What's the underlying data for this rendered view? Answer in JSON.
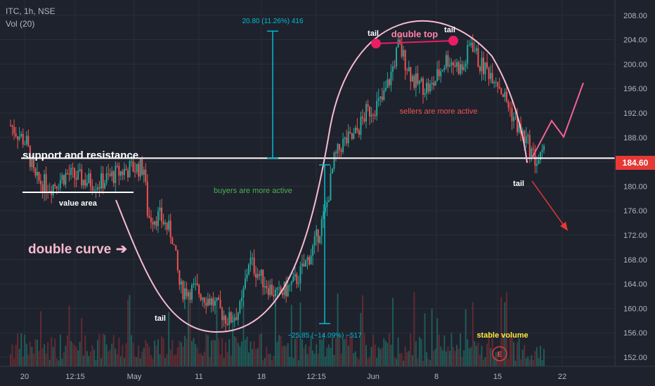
{
  "header": {
    "symbol_line": "ITC, 1h, NSE",
    "volume_line": "Vol (20)"
  },
  "colors": {
    "background": "#1e222d",
    "grid": "#2a2e39",
    "up_candle": "#26a69a",
    "down_candle": "#ef5350",
    "volume_up": "#1f6f66",
    "volume_down": "#7a2e33",
    "curve": "#f8bbd0",
    "pink_marker": "#e91e63",
    "measure_cyan": "#00bcd4",
    "sellers_text": "#ef5350",
    "buyers_text": "#4caf50",
    "stable_text": "#ffeb3b",
    "price_badge": "#e53935",
    "white": "#ffffff"
  },
  "chart_data": {
    "type": "candlestick",
    "title": "ITC, 1h, NSE",
    "ylim": [
      150.5,
      210.5
    ],
    "y_ticks": [
      152,
      156,
      160,
      164,
      168,
      172,
      176,
      180,
      184,
      188,
      192,
      196,
      200,
      204,
      208
    ],
    "y_tick_labels": [
      "152.00",
      "156.00",
      "160.00",
      "164.00",
      "168.00",
      "172.00",
      "176.00",
      "180.00",
      "184.00",
      "188.00",
      "192.00",
      "196.00",
      "200.00",
      "204.00",
      "208.00"
    ],
    "x_ticks": [
      "20",
      "12:15",
      "May",
      "11",
      "18",
      "12:15",
      "Jun",
      "8",
      "15",
      "22"
    ],
    "last_price": "184.60",
    "price_path": [
      {
        "d": 0,
        "p": 190
      },
      {
        "d": 2,
        "p": 187
      },
      {
        "d": 3,
        "p": 181
      },
      {
        "d": 5,
        "p": 180
      },
      {
        "d": 7,
        "p": 182
      },
      {
        "d": 9,
        "p": 181
      },
      {
        "d": 11,
        "p": 180.5
      },
      {
        "d": 13,
        "p": 182
      },
      {
        "d": 15,
        "p": 183
      },
      {
        "d": 16.5,
        "p": 183
      },
      {
        "d": 17,
        "p": 175
      },
      {
        "d": 18.5,
        "p": 175
      },
      {
        "d": 20,
        "p": 172
      },
      {
        "d": 21,
        "p": 163
      },
      {
        "d": 23,
        "p": 163
      },
      {
        "d": 25,
        "p": 161
      },
      {
        "d": 27,
        "p": 158
      },
      {
        "d": 28.5,
        "p": 160
      },
      {
        "d": 29.5,
        "p": 168
      },
      {
        "d": 31,
        "p": 165
      },
      {
        "d": 33,
        "p": 162
      },
      {
        "d": 35,
        "p": 164
      },
      {
        "d": 36,
        "p": 166
      },
      {
        "d": 37.5,
        "p": 170
      },
      {
        "d": 39,
        "p": 176
      },
      {
        "d": 40,
        "p": 184
      },
      {
        "d": 41,
        "p": 187
      },
      {
        "d": 42.5,
        "p": 188
      },
      {
        "d": 44,
        "p": 192
      },
      {
        "d": 46,
        "p": 194
      },
      {
        "d": 47,
        "p": 198
      },
      {
        "d": 48,
        "p": 203
      },
      {
        "d": 50,
        "p": 197
      },
      {
        "d": 52,
        "p": 196
      },
      {
        "d": 54,
        "p": 201
      },
      {
        "d": 56,
        "p": 199
      },
      {
        "d": 57,
        "p": 204
      },
      {
        "d": 58,
        "p": 200
      },
      {
        "d": 60,
        "p": 198
      },
      {
        "d": 62,
        "p": 192
      },
      {
        "d": 63,
        "p": 189
      },
      {
        "d": 64,
        "p": 187
      },
      {
        "d": 65,
        "p": 184
      },
      {
        "d": 66,
        "p": 185
      }
    ],
    "series": [
      {
        "name": "Vol (20)",
        "kind": "volume"
      }
    ]
  },
  "annotations": {
    "support_resistance": "support and resistance",
    "value_area": "value area",
    "double_curve": "double curve",
    "tail_labels": [
      "tail",
      "tail",
      "tail",
      "tail"
    ],
    "double_top": "double top",
    "sellers": "sellers are more active",
    "buyers": "buyers are more active",
    "stable_volume": "stable volume",
    "measure_up": "20.80 (11.26%) 416",
    "measure_down": "−25.85 (−14.09%) −517",
    "arrow_glyph": "➔",
    "earnings_badge": "E"
  }
}
